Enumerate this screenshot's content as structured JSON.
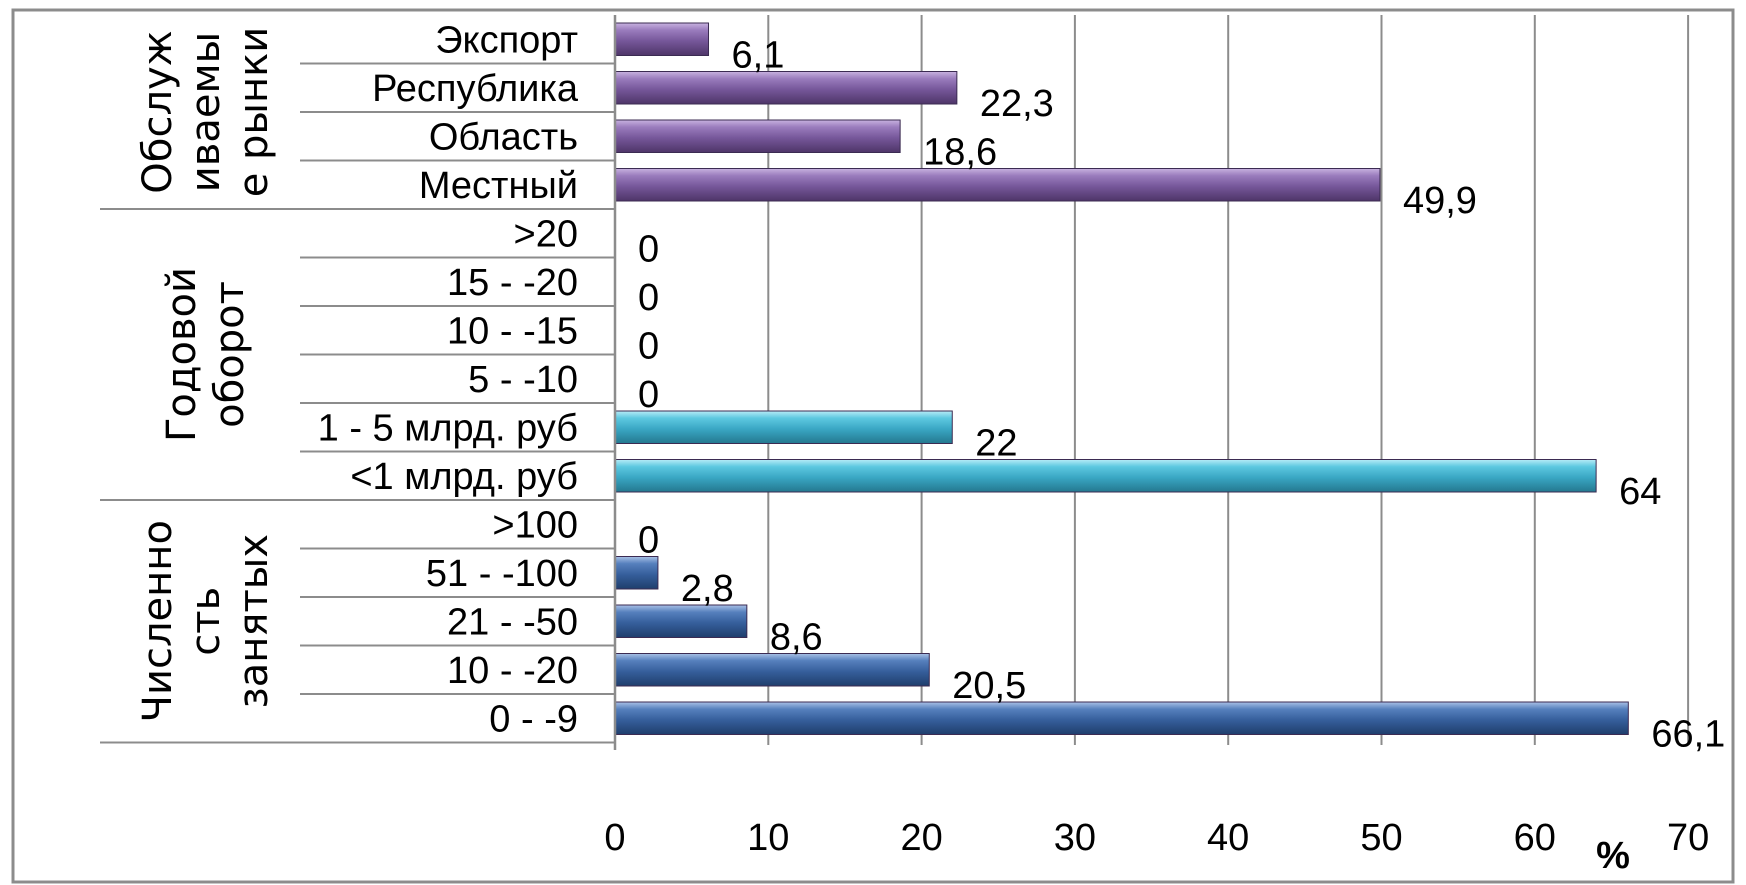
{
  "chart_data": {
    "type": "bar",
    "orientation": "horizontal",
    "xlabel": "%",
    "xlim": [
      0,
      70
    ],
    "xticks": [
      "0",
      "10",
      "20",
      "30",
      "40",
      "50",
      "60",
      "70"
    ],
    "grid": true,
    "groups": [
      {
        "name_lines": [
          "Обслуж",
          "иваемы",
          "е рынки"
        ],
        "color": "#7e5f9e",
        "categories": [
          "Экспорт",
          "Республика",
          "Область",
          "Местный"
        ],
        "values": [
          6.1,
          22.3,
          18.6,
          49.9
        ],
        "labels": [
          "6,1",
          "22,3",
          "18,6",
          "49,9"
        ]
      },
      {
        "name_lines": [
          "Годовой",
          "оборот"
        ],
        "color": "#4bb7d2",
        "categories": [
          ">20",
          "15 - -20",
          "10 - -15",
          "5 - -10",
          "1 - 5 млрд. руб",
          "<1 млрд. руб"
        ],
        "values": [
          0,
          0,
          0,
          0,
          22,
          64
        ],
        "labels": [
          "0",
          "0",
          "0",
          "0",
          "22",
          "64"
        ]
      },
      {
        "name_lines": [
          "Численно",
          "сть",
          "занятых"
        ],
        "color": "#3e6aa8",
        "categories": [
          ">100",
          "51 - -100",
          "21 - -50",
          "10 - -20",
          "0 - -9"
        ],
        "values": [
          0,
          2.8,
          8.6,
          20.5,
          66.1
        ],
        "labels": [
          "0",
          "2,8",
          "8,6",
          "20,5",
          "66,1"
        ]
      }
    ]
  }
}
